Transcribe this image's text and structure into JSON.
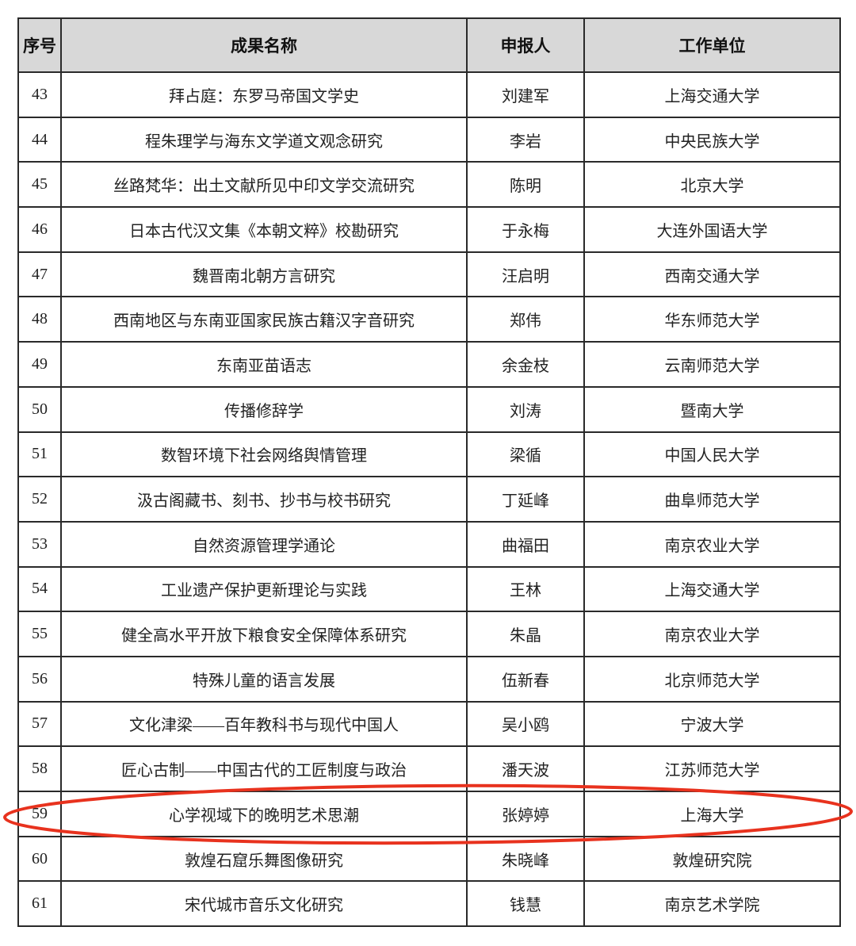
{
  "table": {
    "headers": [
      "序号",
      "成果名称",
      "申报人",
      "工作单位"
    ],
    "rows": [
      [
        "43",
        "拜占庭：东罗马帝国文学史",
        "刘建军",
        "上海交通大学"
      ],
      [
        "44",
        "程朱理学与海东文学道文观念研究",
        "李岩",
        "中央民族大学"
      ],
      [
        "45",
        "丝路梵华：出土文献所见中印文学交流研究",
        "陈明",
        "北京大学"
      ],
      [
        "46",
        "日本古代汉文集《本朝文粹》校勘研究",
        "于永梅",
        "大连外国语大学"
      ],
      [
        "47",
        "魏晋南北朝方言研究",
        "汪启明",
        "西南交通大学"
      ],
      [
        "48",
        "西南地区与东南亚国家民族古籍汉字音研究",
        "郑伟",
        "华东师范大学"
      ],
      [
        "49",
        "东南亚苗语志",
        "余金枝",
        "云南师范大学"
      ],
      [
        "50",
        "传播修辞学",
        "刘涛",
        "暨南大学"
      ],
      [
        "51",
        "数智环境下社会网络舆情管理",
        "梁循",
        "中国人民大学"
      ],
      [
        "52",
        "汲古阁藏书、刻书、抄书与校书研究",
        "丁延峰",
        "曲阜师范大学"
      ],
      [
        "53",
        "自然资源管理学通论",
        "曲福田",
        "南京农业大学"
      ],
      [
        "54",
        "工业遗产保护更新理论与实践",
        "王林",
        "上海交通大学"
      ],
      [
        "55",
        "健全高水平开放下粮食安全保障体系研究",
        "朱晶",
        "南京农业大学"
      ],
      [
        "56",
        "特殊儿童的语言发展",
        "伍新春",
        "北京师范大学"
      ],
      [
        "57",
        "文化津梁——百年教科书与现代中国人",
        "吴小鸥",
        "宁波大学"
      ],
      [
        "58",
        "匠心古制——中国古代的工匠制度与政治",
        "潘天波",
        "江苏师范大学"
      ],
      [
        "59",
        "心学视域下的晚明艺术思潮",
        "张婷婷",
        "上海大学"
      ],
      [
        "60",
        "敦煌石窟乐舞图像研究",
        "朱晓峰",
        "敦煌研究院"
      ],
      [
        "61",
        "宋代城市音乐文化研究",
        "钱慧",
        "南京艺术学院"
      ]
    ],
    "highlighted_row": "59",
    "highlight_color": "#e8321e"
  }
}
